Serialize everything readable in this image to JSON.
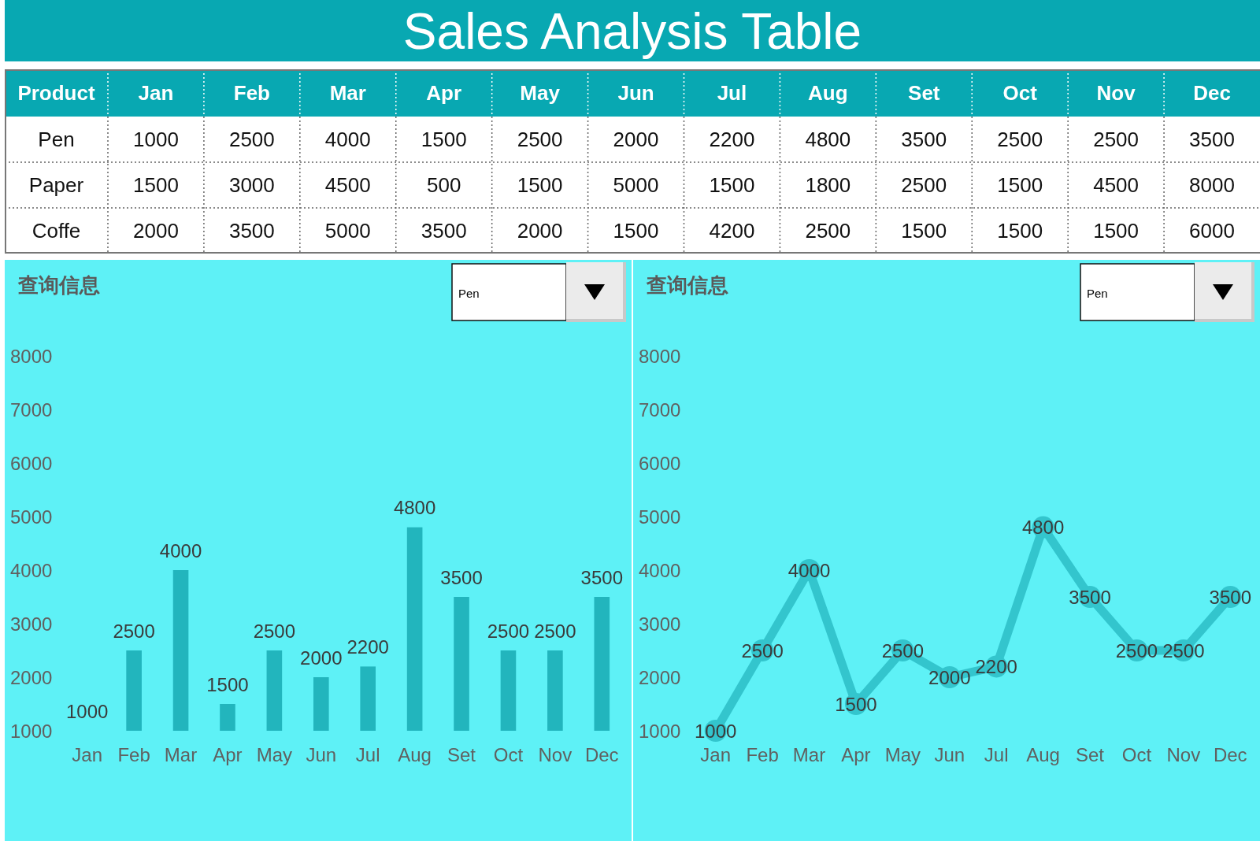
{
  "chart_data": [
    {
      "type": "heatmap",
      "title": "Sales Analysis Table",
      "ylabel": "Product",
      "categories": [
        "Jan",
        "Feb",
        "Mar",
        "Apr",
        "May",
        "Jun",
        "Jul",
        "Aug",
        "Set",
        "Oct",
        "Nov",
        "Dec"
      ],
      "y_categories": [
        "Pen",
        "Paper",
        "Coffe"
      ],
      "cells": [
        [
          1000,
          2500,
          4000,
          1500,
          2500,
          2000,
          2200,
          4800,
          3500,
          2500,
          2500,
          3500
        ],
        [
          1500,
          3000,
          4500,
          500,
          1500,
          5000,
          1500,
          1800,
          2500,
          1500,
          4500,
          8000
        ],
        [
          2000,
          3500,
          5000,
          3500,
          2000,
          1500,
          4200,
          2500,
          1500,
          1500,
          1500,
          6000
        ]
      ],
      "data_labels": true
    },
    {
      "type": "bar",
      "title": "查询信息",
      "annotations": [
        "Pen"
      ],
      "categories": [
        "Jan",
        "Feb",
        "Mar",
        "Apr",
        "May",
        "Jun",
        "Jul",
        "Aug",
        "Set",
        "Oct",
        "Nov",
        "Dec"
      ],
      "series": [
        {
          "color": "#22b5bd",
          "values": [
            1000,
            2500,
            4000,
            1500,
            2500,
            2000,
            2200,
            4800,
            3500,
            2500,
            2500,
            3500
          ]
        }
      ],
      "ylim": [
        1000,
        8000
      ],
      "yticks": [
        1000,
        2000,
        3000,
        4000,
        5000,
        6000,
        7000,
        8000
      ],
      "data_labels": true
    },
    {
      "type": "line",
      "title": "查询信息",
      "annotations": [
        "Pen"
      ],
      "categories": [
        "Jan",
        "Feb",
        "Mar",
        "Apr",
        "May",
        "Jun",
        "Jul",
        "Aug",
        "Set",
        "Oct",
        "Nov",
        "Dec"
      ],
      "series": [
        {
          "color": "#33c5cd",
          "values": [
            1000,
            2500,
            4000,
            1500,
            2500,
            2000,
            2200,
            4800,
            3500,
            2500,
            2500,
            3500
          ]
        }
      ],
      "ylim": [
        1000,
        8000
      ],
      "yticks": [
        1000,
        2000,
        3000,
        4000,
        5000,
        6000,
        7000,
        8000
      ],
      "data_labels": true,
      "marker": "circle",
      "line_style": "solid"
    }
  ]
}
